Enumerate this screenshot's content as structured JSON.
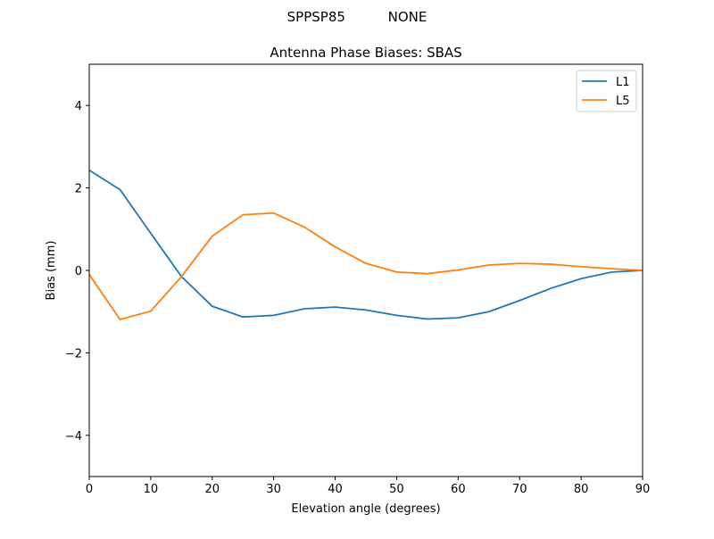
{
  "suptitle": "SPPSP85          NONE",
  "chart_data": {
    "type": "line",
    "title": "Antenna Phase Biases: SBAS",
    "xlabel": "Elevation angle (degrees)",
    "ylabel": "Bias (mm)",
    "xlim": [
      0,
      90
    ],
    "ylim": [
      -5,
      5
    ],
    "xticks": [
      0,
      10,
      20,
      30,
      40,
      50,
      60,
      70,
      80,
      90
    ],
    "yticks": [
      -4,
      -2,
      0,
      2,
      4
    ],
    "ytick_labels": [
      "−4",
      "−2",
      "0",
      "2",
      "4"
    ],
    "grid": false,
    "legend": "top-right",
    "x": [
      0,
      5,
      10,
      15,
      20,
      25,
      30,
      35,
      40,
      45,
      50,
      55,
      60,
      65,
      70,
      75,
      80,
      85,
      90
    ],
    "series": [
      {
        "name": "L1",
        "color": "#1f77b4",
        "values": [
          2.43,
          1.96,
          0.9,
          -0.15,
          -0.87,
          -1.13,
          -1.09,
          -0.93,
          -0.89,
          -0.96,
          -1.09,
          -1.18,
          -1.15,
          -1.0,
          -0.73,
          -0.44,
          -0.2,
          -0.04,
          0.0
        ]
      },
      {
        "name": "L5",
        "color": "#ff7f0e",
        "values": [
          -0.1,
          -1.19,
          -0.99,
          -0.15,
          0.83,
          1.35,
          1.39,
          1.05,
          0.57,
          0.17,
          -0.04,
          -0.08,
          0.01,
          0.13,
          0.17,
          0.15,
          0.09,
          0.04,
          0.0
        ]
      }
    ]
  }
}
